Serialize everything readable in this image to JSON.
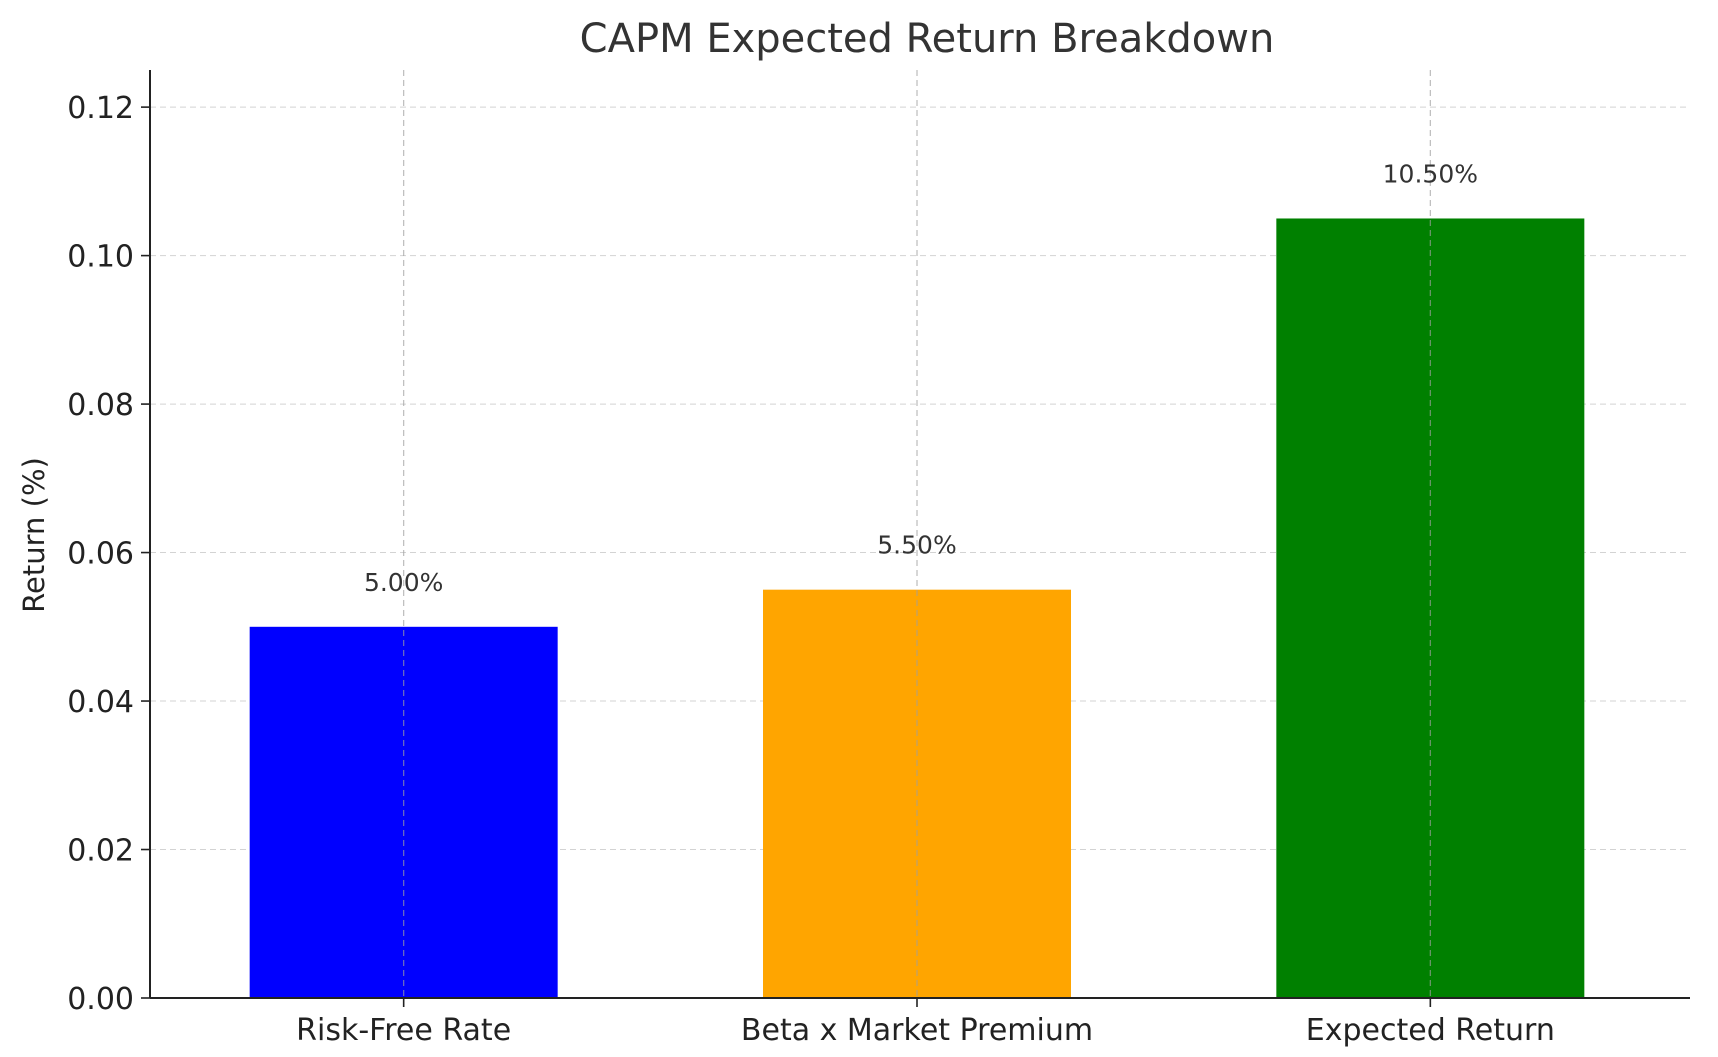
{
  "chart_data": {
    "type": "bar",
    "title": "CAPM Expected Return Breakdown",
    "xlabel": "",
    "ylabel": "Return (%)",
    "categories": [
      "Risk-Free Rate",
      "Beta x Market Premium",
      "Expected Return"
    ],
    "values": [
      0.05,
      0.055,
      0.105
    ],
    "data_labels": [
      "5.00%",
      "5.50%",
      "10.50%"
    ],
    "colors": [
      "#0000ff",
      "#ffa500",
      "#008000"
    ],
    "ylim": [
      0,
      0.125
    ],
    "yticks": [
      0.0,
      0.02,
      0.04,
      0.06,
      0.08,
      0.1,
      0.12
    ],
    "ytick_labels": [
      "0.00",
      "0.02",
      "0.04",
      "0.06",
      "0.08",
      "0.10",
      "0.12"
    ],
    "grid": true,
    "legend": "none"
  }
}
